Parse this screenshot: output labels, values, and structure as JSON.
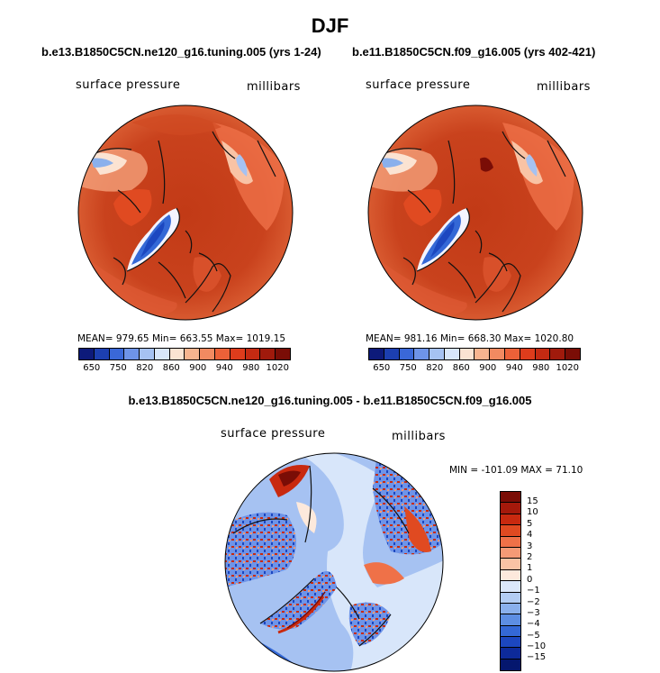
{
  "title": "DJF",
  "panels": [
    {
      "subtitle": "b.e13.B1850C5CN.ne120_g16.tuning.005 (yrs 1-24)",
      "variable": "surface pressure",
      "units": "millibars",
      "stats": "MEAN= 979.65   Min= 663.55   Max= 1019.15"
    },
    {
      "subtitle": "b.e11.B1850C5CN.f09_g16.005 (yrs 402-421)",
      "variable": "surface pressure",
      "units": "millibars",
      "stats": "MEAN= 981.16   Min= 668.30   Max= 1020.80"
    }
  ],
  "absolute_colorbar": {
    "labels": [
      "650",
      "750",
      "820",
      "860",
      "900",
      "940",
      "980",
      "1020"
    ],
    "colors": [
      "#0d1a7a",
      "#1c3fb0",
      "#3a68d8",
      "#6e94e8",
      "#a6c2f2",
      "#d8e6fa",
      "#fbe3d2",
      "#f7b48f",
      "#f28a61",
      "#ec6138",
      "#de3c1c",
      "#c42a12",
      "#a01a0c",
      "#7a0d06"
    ]
  },
  "difference": {
    "title": "b.e13.B1850C5CN.ne120_g16.tuning.005 - b.e11.B1850C5CN.f09_g16.005",
    "variable": "surface pressure",
    "units": "millibars",
    "stats": "MIN = -101.09  MAX =  71.10",
    "colorbar": {
      "labels": [
        "15",
        "10",
        "5",
        "4",
        "3",
        "2",
        "1",
        "0",
        "−1",
        "−2",
        "−3",
        "−4",
        "−5",
        "−10",
        "−15"
      ],
      "colors": [
        "#7a0d06",
        "#a5190b",
        "#c8290f",
        "#e04a21",
        "#ef7148",
        "#f59a76",
        "#f9c3a5",
        "#fde9dc",
        "#dbe8fa",
        "#b3cdf3",
        "#8ab0ec",
        "#5d8ee3",
        "#3468d6",
        "#1c47c0",
        "#0d2a9a",
        "#05176e"
      ]
    }
  }
}
